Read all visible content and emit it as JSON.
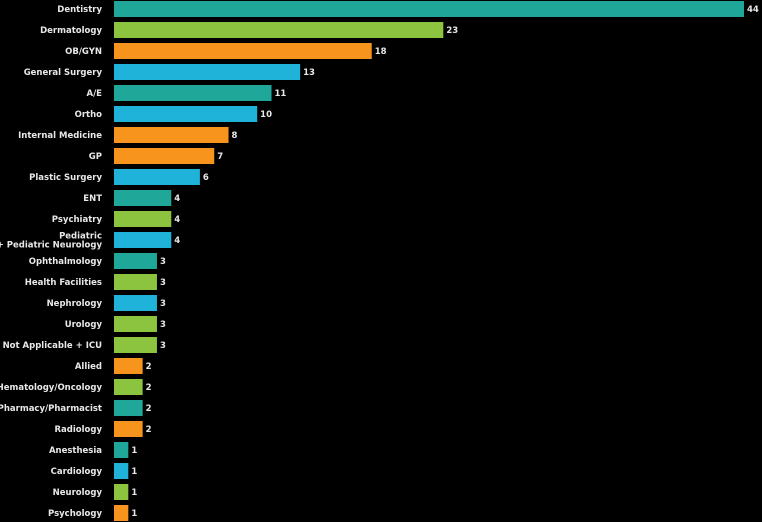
{
  "chart_data": {
    "type": "bar",
    "orientation": "horizontal",
    "categories": [
      "Dentistry",
      "Dermatology",
      "OB/GYN",
      "General Surgery",
      "A/E",
      "Ortho",
      "Internal Medicine",
      "GP",
      "Plastic Surgery",
      "ENT",
      "Psychiatry",
      "Pediatric\n+ Pediatric Neurology",
      "Ophthalmology",
      "Health Facilities",
      "Nephrology",
      "Urology",
      "Not Applicable + ICU",
      "Allied",
      "Hematology/Oncology",
      "Pharmacy/Pharmacist",
      "Radiology",
      "Anesthesia",
      "Cardiology",
      "Neurology",
      "Psychology"
    ],
    "values": [
      44,
      23,
      18,
      13,
      11,
      10,
      8,
      7,
      6,
      4,
      4,
      4,
      3,
      3,
      3,
      3,
      3,
      2,
      2,
      2,
      2,
      1,
      1,
      1,
      1
    ],
    "colors": [
      "#1fa89a",
      "#8cc43f",
      "#f7941d",
      "#1fb3d9",
      "#1fa89a",
      "#1fb3d9",
      "#f7941d",
      "#f7941d",
      "#1fb3d9",
      "#1fa89a",
      "#8cc43f",
      "#1fb3d9",
      "#1fa89a",
      "#8cc43f",
      "#1fb3d9",
      "#8cc43f",
      "#8cc43f",
      "#f7941d",
      "#8cc43f",
      "#1fa89a",
      "#f7941d",
      "#1fa89a",
      "#1fb3d9",
      "#8cc43f",
      "#f7941d"
    ],
    "xlim": [
      0,
      44
    ],
    "title": "",
    "xlabel": "",
    "ylabel": "",
    "grid": false,
    "legend": "none"
  }
}
